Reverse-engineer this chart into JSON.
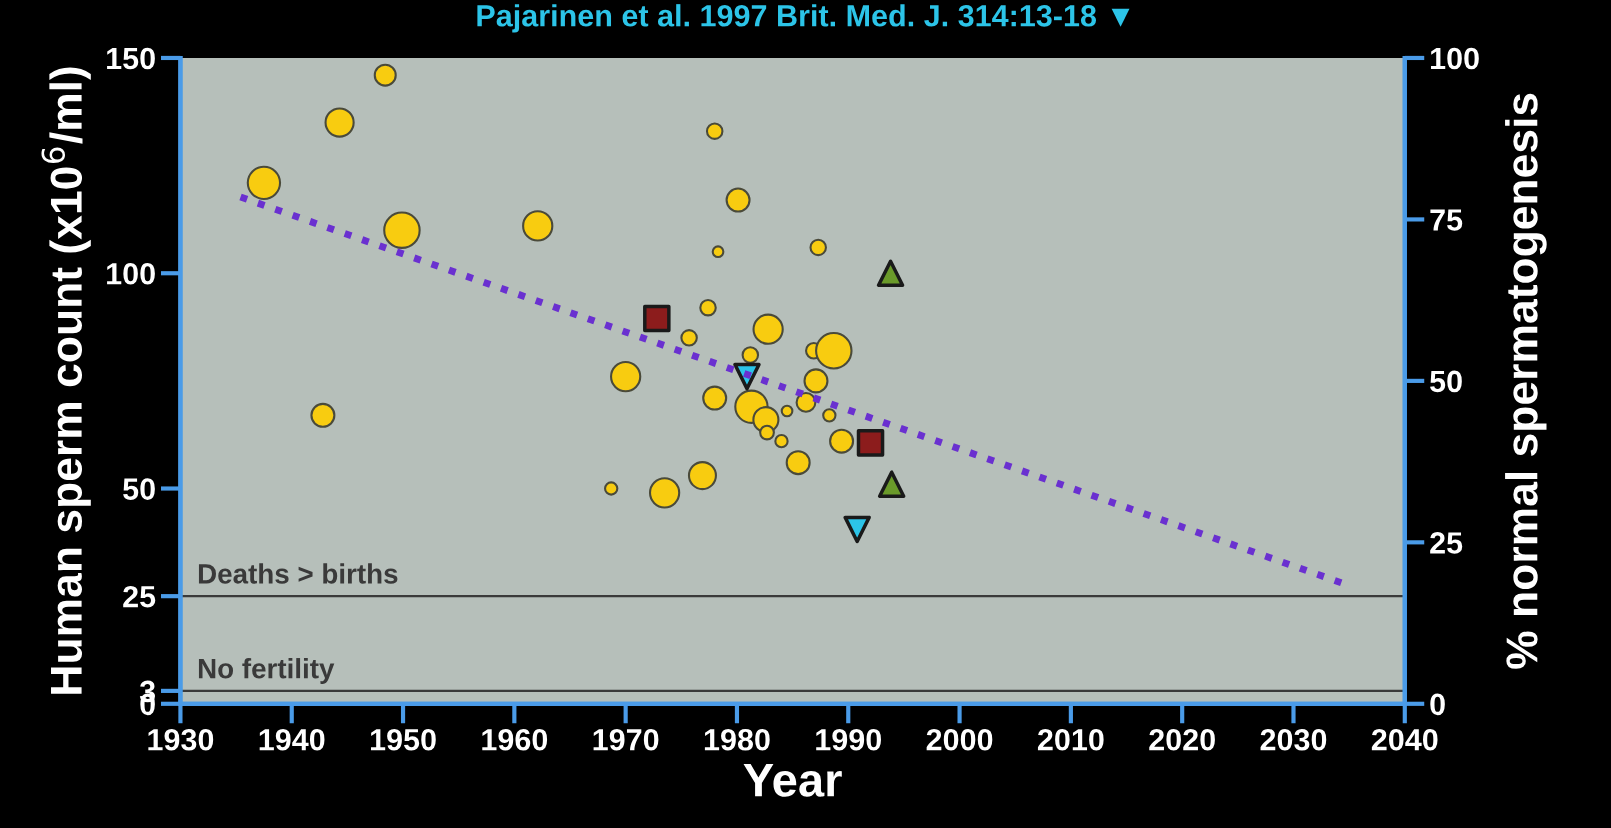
{
  "chart_data": {
    "type": "bubble",
    "xlabel": "Year",
    "ylabel": "Human sperm count (x10$^{6}$/ml)",
    "y2label": "% normal spermatogenesis",
    "annotations": [
      "Pajarinen et al. 1997 Brit. Med. J. 314:13-18 ▼"
    ],
    "xlim": [
      1930,
      2040
    ],
    "xticks": [
      1930,
      1940,
      1950,
      1960,
      1970,
      1980,
      1990,
      2000,
      2010,
      2020,
      2030,
      2040
    ],
    "ylim": [
      0,
      150
    ],
    "yticks": [
      0,
      3,
      25,
      50,
      100,
      150
    ],
    "y2lim": [
      0,
      100
    ],
    "y2ticks": [
      0,
      25,
      50,
      75,
      100
    ],
    "grid": false,
    "legend": false,
    "ref_lines": [
      {
        "axis": "y",
        "value": 25,
        "label": "Deaths > births",
        "color": "#3a3a3a"
      },
      {
        "axis": "y",
        "value": 3,
        "label": "No fertility",
        "color": "#3a3a3a"
      }
    ],
    "series": [
      {
        "color": "#f8cc10",
        "marker": "circle",
        "x": [
          1948.4,
          1944.3,
          1937.5,
          1949.9,
          1962.1,
          1942.8,
          1978.0,
          1980.1,
          1978.3,
          1987.3,
          1977.4,
          1975.7,
          1982.8,
          1981.2,
          1986.9,
          1988.7,
          1970.0,
          1987.1,
          1978.0,
          1981.3,
          1982.6,
          1982.7,
          1984.5,
          1986.2,
          1988.3,
          1984.0,
          1989.4,
          1985.5,
          1976.9,
          1968.7,
          1973.5
        ],
        "values": [
          146,
          135,
          121,
          110,
          111,
          67,
          133,
          117,
          105,
          106,
          92,
          85,
          87,
          81,
          82,
          82,
          76,
          75,
          71,
          69,
          66,
          63,
          68,
          70,
          67,
          61,
          61,
          56,
          53,
          50,
          49
        ],
        "sizes": [
          0.35,
          0.63,
          0.83,
          1.0,
          0.68,
          0.42,
          0.19,
          0.42,
          0.09,
          0.19,
          0.19,
          0.19,
          0.68,
          0.19,
          0.19,
          1.0,
          0.68,
          0.42,
          0.42,
          0.83,
          0.5,
          0.15,
          0.09,
          0.28,
          0.12,
          0.12,
          0.42,
          0.42,
          0.58,
          0.12,
          0.68
        ]
      },
      {
        "type": "scatter",
        "color": "#8c1c1c",
        "marker": "square",
        "x": [
          1972.8,
          1992.0
        ],
        "values": [
          89.5,
          60.6
        ]
      },
      {
        "type": "scatter",
        "color": "#6a9a2a",
        "marker": "triangle",
        "x": [
          1993.8,
          1993.9
        ],
        "values": [
          100,
          51
        ]
      },
      {
        "type": "scatter",
        "color": "#2cc4e8",
        "marker": "triangle-down",
        "x": [
          1980.9,
          1990.8
        ],
        "values": [
          76,
          40.5
        ]
      },
      {
        "type": "line",
        "color": "#6a30d0",
        "line_style": "dotted",
        "marker": "none",
        "x": [
          1935.4,
          2035.2
        ],
        "values": [
          117.7,
          27.3
        ]
      }
    ]
  }
}
